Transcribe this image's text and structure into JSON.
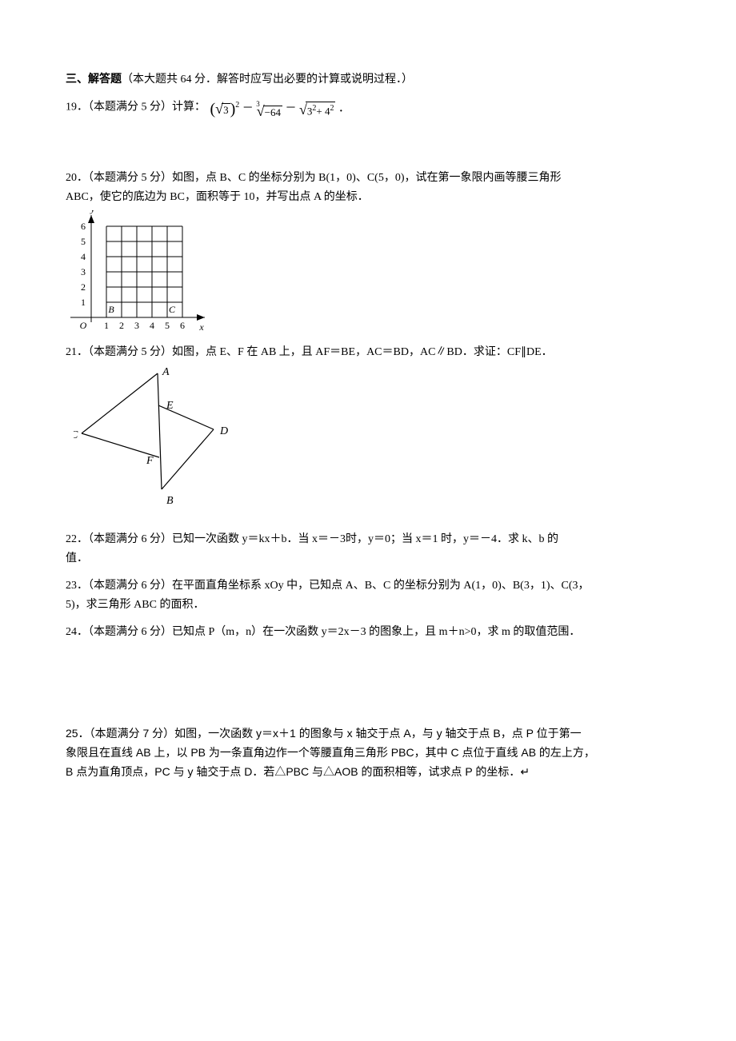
{
  "colors": {
    "text": "#000000",
    "bg": "#ffffff",
    "grid": "#000000",
    "fig_stroke": "#000000"
  },
  "section": {
    "label": "三、",
    "title": "解答题",
    "note": "（本大题共 64 分．解答时应写出必要的计算或说明过程．）"
  },
  "q19": {
    "prefix": "19．（本题满分 5 分）计算：",
    "paren_l": "(",
    "sqrt3": "3",
    "paren_r": ")",
    "exp2": "2",
    "minus": "－",
    "root3_idx": "3",
    "neg64": "−64",
    "minus2": "－",
    "inside2": "3",
    "sq1": "2",
    "plus": "+ 4",
    "sq2": "2",
    "period": "．"
  },
  "q20": {
    "text1": "20．（本题满分 5 分）如图，点 B、C 的坐标分别为 B(1，0)、C(5，0)，试在第一象限内画等腰三角形",
    "text2": "ABC，使它的底边为 BC，面积等于 10，并写出点 A 的坐标．",
    "grid": {
      "xmin": 0,
      "xmax": 6,
      "ymin": 0,
      "ymax": 6,
      "xticks": [
        "1",
        "2",
        "3",
        "4",
        "5",
        "6"
      ],
      "yticks": [
        "1",
        "2",
        "3",
        "4",
        "5",
        "6"
      ],
      "origin": "O",
      "xlabel": "x",
      "ylabel": "y",
      "B_label": "B",
      "C_label": "C",
      "B_x": 1,
      "C_x": 5,
      "cell": 19,
      "stroke": "#000000",
      "stroke_width": 1,
      "font_size": 12,
      "italic_labels": true
    }
  },
  "q21": {
    "text": "21．（本题满分 5 分）如图，点 E、F 在 AB 上，且 AF＝BE，AC＝BD，AC∥BD．求证：CF∥DE．",
    "fig": {
      "labels": {
        "A": "A",
        "B": "B",
        "C": "C",
        "D": "D",
        "E": "E",
        "F": "F"
      },
      "stroke": "#000000",
      "stroke_width": 1.2,
      "font_size": 14,
      "italic": true,
      "pts": {
        "A": [
          105,
          10
        ],
        "B": [
          110,
          155
        ],
        "C": [
          10,
          85
        ],
        "D": [
          175,
          80
        ],
        "E": [
          106,
          50
        ],
        "F": [
          107,
          115
        ]
      }
    }
  },
  "q22": {
    "text1": "22．（本题满分 6 分）已知一次函数 y＝kx＋b．当 x＝－3时，y＝0；当 x＝1 时，y＝－4．求 k、b 的",
    "text2": "值．"
  },
  "q23": {
    "text1": "23．（本题满分 6 分）在平面直角坐标系 xOy 中，已知点 A、B、C 的坐标分别为 A(1，0)、B(3，1)、C(3，",
    "text2": "5)，求三角形 ABC 的面积．"
  },
  "q24": {
    "text": "24．（本题满分 6 分）已知点 P（m，n）在一次函数 y＝2x－3 的图象上，且 m＋n>0，求 m 的取值范围．"
  },
  "q25": {
    "text1": "25．（本题满分 7 分）如图，一次函数 y＝x＋1 的图象与 x 轴交于点 A，与 y 轴交于点 B，点 P 位于第一",
    "text2": "象限且在直线 AB 上，以 PB 为一条直角边作一个等腰直角三角形 PBC，其中 C 点位于直线 AB 的左上方，",
    "text3": "B 点为直角顶点，PC 与 y 轴交于点 D．若△PBC 与△AOB 的面积相等，试求点 P 的坐标．↵"
  }
}
